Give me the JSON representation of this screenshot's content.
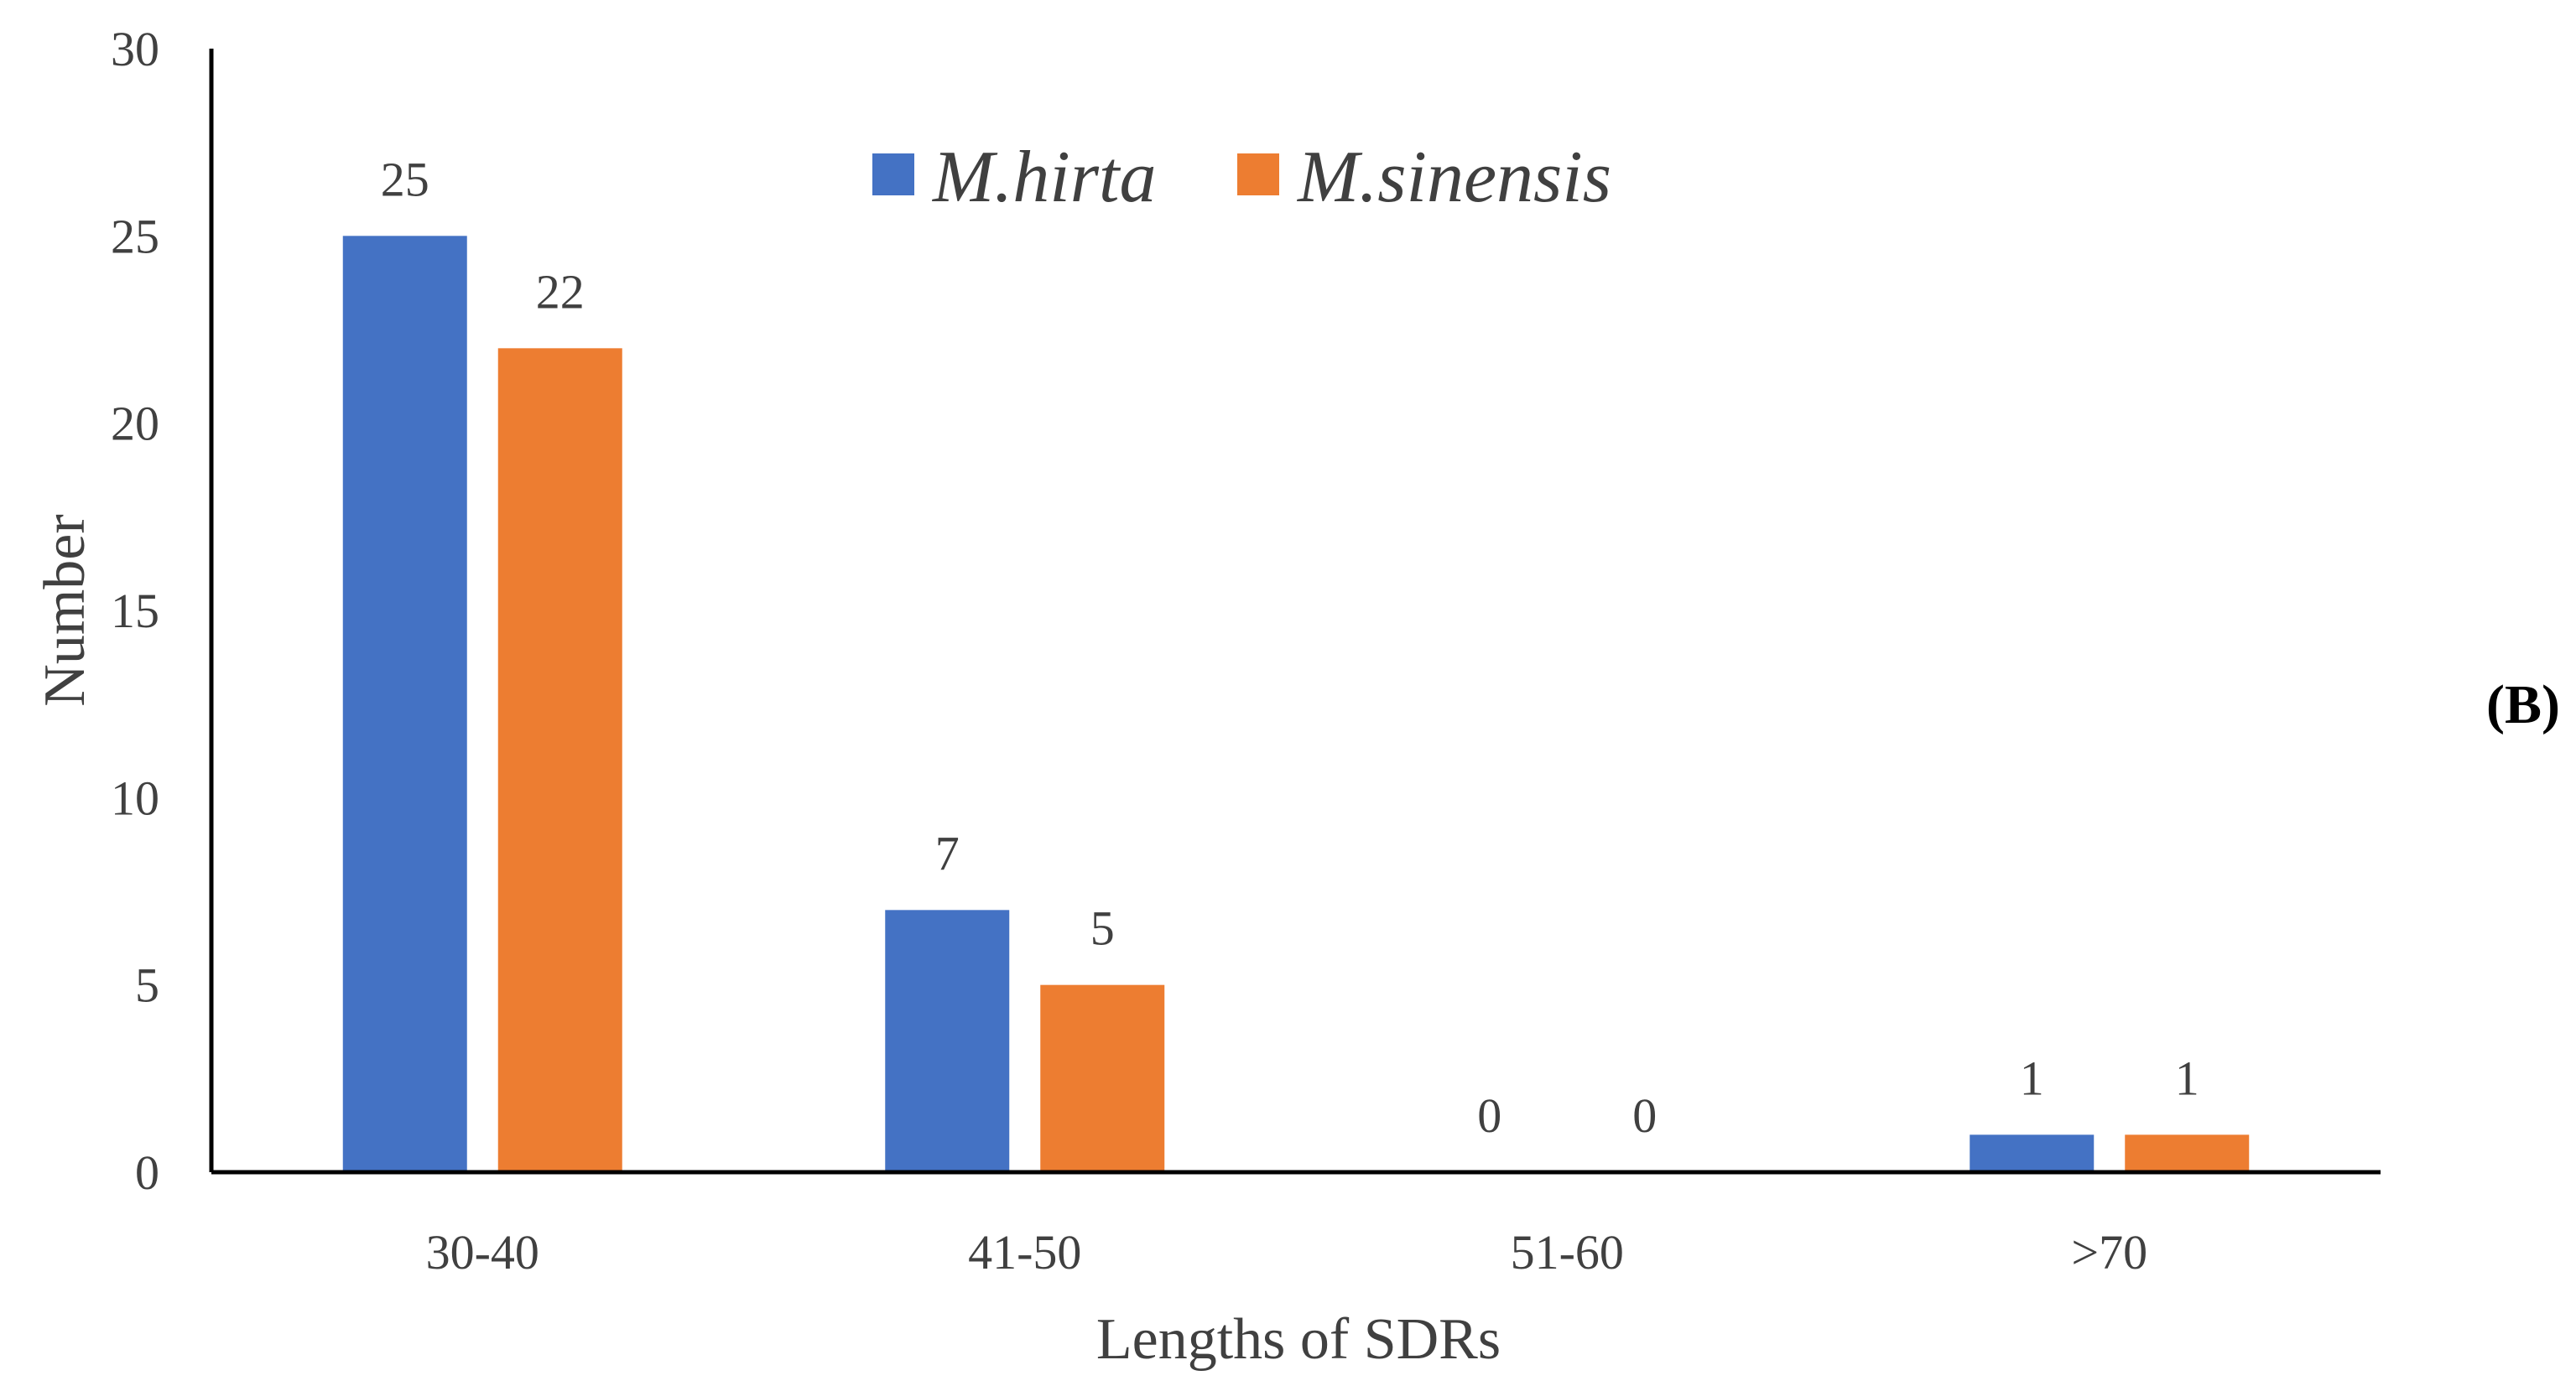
{
  "chart_data": {
    "type": "bar",
    "categories": [
      "30-40",
      "41-50",
      "51-60",
      ">70"
    ],
    "series": [
      {
        "name": "M.hirta",
        "values": [
          25,
          7,
          0,
          1
        ],
        "color": "#4472C4"
      },
      {
        "name": "M.sinensis",
        "values": [
          22,
          5,
          0,
          1
        ],
        "color": "#ED7D31"
      }
    ],
    "xlabel": "Lengths of SDRs",
    "ylabel": "Number",
    "ylim": [
      0,
      30
    ],
    "yticks": [
      0,
      5,
      10,
      15,
      20,
      25,
      30
    ],
    "grid": false,
    "legend_position": "top-center",
    "data_labels": true
  },
  "panel_label": "(B)"
}
